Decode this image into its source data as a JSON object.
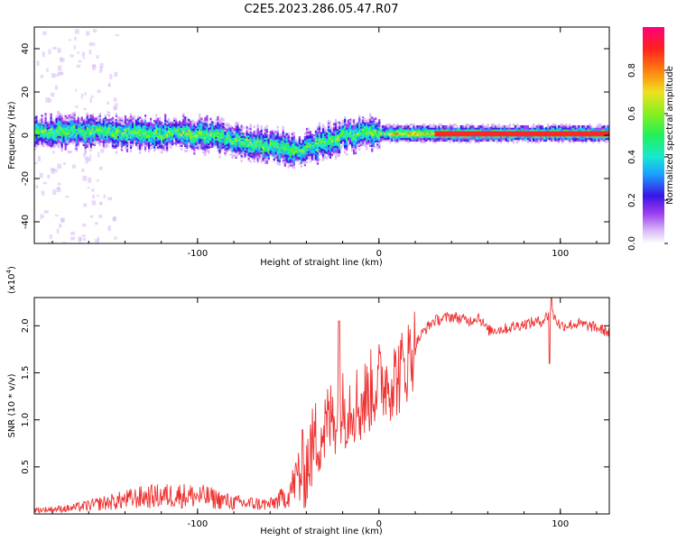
{
  "title": "C2E5.2023.286.05.47.R07",
  "chart_data": [
    {
      "type": "heatmap",
      "xlabel": "Height of straight line (km)",
      "ylabel": "Frequency (Hz)",
      "xlim": [
        -190,
        127
      ],
      "ylim": [
        -50,
        50
      ],
      "x_ticks": [
        -100,
        0,
        100
      ],
      "y_ticks": [
        -40,
        -20,
        0,
        20,
        40
      ],
      "colorbar": {
        "label": "Normalized spectral amplitude",
        "range": [
          0,
          1
        ],
        "ticks": [
          "0.0",
          "0.2",
          "0.4",
          "0.6",
          "0.8"
        ],
        "colors": [
          "#ffffff",
          "#d9b8f5",
          "#9a3cf0",
          "#3a14e6",
          "#1aa0ff",
          "#18e8d0",
          "#22f05a",
          "#86f020",
          "#f0e020",
          "#ff8010",
          "#ff2020",
          "#ff007a"
        ]
      },
      "ridge": {
        "x_km": [
          -190,
          -170,
          -150,
          -130,
          -110,
          -90,
          -75,
          -60,
          -50,
          -45,
          -40,
          -30,
          -20,
          -10,
          0,
          20,
          50,
          90,
          127
        ],
        "freq_hz": [
          2,
          2,
          2,
          1,
          1,
          0,
          -3,
          -5,
          -6,
          -8,
          -5,
          -3,
          0,
          1,
          1,
          1,
          1,
          1,
          1
        ]
      }
    },
    {
      "type": "line",
      "xlabel": "Height of straight line (km)",
      "ylabel": "SNR (10 * v/v)",
      "y_multiplier": "(x10^4)",
      "multiplier_base": "(x10",
      "multiplier_exp": "4",
      "multiplier_close": ")",
      "xlim": [
        -190,
        127
      ],
      "ylim": [
        0,
        2.3
      ],
      "x_ticks": [
        -100,
        0,
        100
      ],
      "y_ticks": [
        0.5,
        1.0,
        1.5,
        2.0
      ],
      "y_tick_labels": [
        "0.5",
        "1.0",
        "1.5",
        "2.0"
      ],
      "series_color": "#ee3333",
      "envelope": {
        "x_km": [
          -190,
          -170,
          -150,
          -130,
          -110,
          -95,
          -80,
          -60,
          -50,
          -45,
          -40,
          -35,
          -30,
          -25,
          -20,
          -15,
          -10,
          -5,
          0,
          10,
          15,
          20,
          25,
          30,
          40,
          50,
          55,
          60,
          70,
          80,
          90,
          95,
          100,
          110,
          120,
          127
        ],
        "snr_x1e4": [
          0.04,
          0.06,
          0.12,
          0.18,
          0.2,
          0.18,
          0.12,
          0.1,
          0.2,
          0.4,
          0.5,
          0.8,
          0.9,
          1.05,
          1.1,
          1.2,
          1.15,
          1.3,
          1.4,
          1.45,
          1.6,
          1.8,
          1.95,
          2.05,
          2.1,
          2.05,
          2.1,
          1.95,
          1.97,
          2.02,
          2.05,
          2.15,
          2.0,
          2.02,
          1.98,
          1.93
        ]
      }
    }
  ]
}
